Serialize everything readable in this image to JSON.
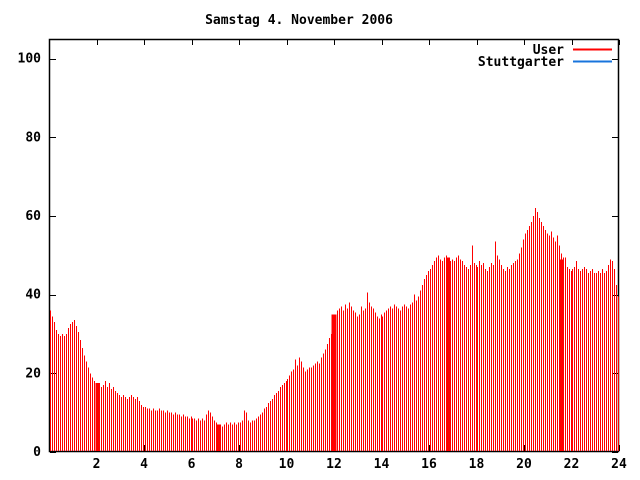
{
  "window": {
    "background": "#ffffff"
  },
  "chart_data": {
    "type": "bar",
    "title": "Samstag 4. November 2006",
    "xlabel": "",
    "ylabel": "",
    "x_unit": "hour-of-day",
    "sample_interval_minutes": 5,
    "xlim": [
      0,
      24
    ],
    "ylim": [
      0,
      105
    ],
    "x_ticks": [
      2,
      4,
      6,
      8,
      10,
      12,
      14,
      16,
      18,
      20,
      22,
      24
    ],
    "y_ticks": [
      0,
      20,
      40,
      60,
      80,
      100
    ],
    "grid": false,
    "legend_position": "top-right-inside",
    "axis_color": "#000000",
    "text_color": "#000000",
    "series": [
      {
        "name": "User",
        "color": "#ff0000",
        "style": "impulses",
        "values": [
          36,
          34.5,
          33,
          31,
          30,
          29.5,
          30,
          29.5,
          30,
          31.5,
          32.5,
          33,
          33.5,
          32,
          30.5,
          28.5,
          26.5,
          24.5,
          23,
          21.5,
          20,
          19,
          18,
          17.5,
          17.5,
          17,
          16.5,
          17,
          18,
          16.5,
          17.5,
          16,
          16.5,
          15.5,
          15,
          14.5,
          14,
          14.5,
          14,
          13.5,
          14,
          14.5,
          14,
          13.5,
          14,
          13,
          12,
          11.5,
          11.5,
          11,
          11,
          10.5,
          11,
          10.5,
          10.5,
          11,
          10.5,
          10.5,
          10,
          10.5,
          10,
          10,
          9.5,
          10,
          9.5,
          9.5,
          9,
          9.5,
          9,
          9,
          8.5,
          9,
          8.5,
          8.5,
          8,
          8.5,
          8,
          8.5,
          8,
          9.5,
          10.5,
          10,
          9,
          8,
          7.5,
          7,
          7,
          6.5,
          7,
          7.5,
          7,
          7.5,
          7,
          7.5,
          7,
          7.5,
          7.5,
          8,
          10.5,
          10,
          8,
          7.5,
          8,
          8,
          8.5,
          9,
          9.5,
          10,
          11,
          11.5,
          12.5,
          13,
          13.5,
          14.5,
          15,
          15.5,
          16.5,
          17,
          17.5,
          18,
          18.5,
          19.5,
          20.5,
          21,
          23.5,
          22,
          24,
          23,
          21.5,
          20.5,
          21,
          21.5,
          21.5,
          22,
          22.5,
          23,
          22.5,
          24,
          25,
          26,
          27.5,
          29,
          30,
          32,
          34,
          36,
          36.5,
          37,
          36,
          37.5,
          36.5,
          38,
          37,
          36,
          35.5,
          34.5,
          35,
          37,
          36,
          36.5,
          40.5,
          38,
          37,
          36.5,
          35.5,
          34.5,
          34,
          35,
          34.5,
          35.5,
          36,
          36.5,
          37,
          36.5,
          37.5,
          37,
          36.5,
          36,
          37,
          37.5,
          37,
          36.5,
          37.5,
          38,
          40,
          38.5,
          39.5,
          41,
          42.5,
          44,
          45,
          46,
          46.5,
          47.5,
          48.5,
          49.5,
          50,
          49,
          48.5,
          49.5,
          50,
          49.5,
          48.5,
          49,
          48.5,
          49.5,
          50,
          49,
          48.5,
          47.5,
          47,
          46.5,
          47.5,
          52.5,
          48,
          47.5,
          47,
          48.5,
          47.5,
          48,
          46.5,
          46,
          47,
          48,
          47.5,
          53.5,
          50,
          49,
          47.5,
          46.5,
          46,
          47,
          46.5,
          47.5,
          48,
          48.5,
          49,
          50.5,
          52,
          54,
          55.5,
          56.5,
          57.5,
          58.5,
          60,
          62,
          61,
          59.5,
          58.5,
          57.5,
          56.5,
          55.5,
          55,
          56,
          54.5,
          53.5,
          55,
          52.5,
          50.5,
          49.5,
          49.5,
          47,
          46.5,
          46,
          46.5,
          47,
          48.5,
          46.5,
          46,
          46.5,
          47,
          46.5,
          45.5,
          46,
          46.5,
          45.5,
          45.5,
          46,
          45.5,
          46.5,
          45.5,
          46,
          47.5,
          49,
          48.5,
          46.5,
          42.5,
          39.5
        ],
        "solid_patches": [
          {
            "hour": 2.05,
            "value": 17.5,
            "width_hours": 0.18
          },
          {
            "hour": 7.15,
            "value": 7,
            "width_hours": 0.18
          },
          {
            "hour": 12.0,
            "value": 35,
            "width_hours": 0.2
          },
          {
            "hour": 16.8,
            "value": 49.5,
            "width_hours": 0.18
          },
          {
            "hour": 21.6,
            "value": 49,
            "width_hours": 0.18
          }
        ]
      },
      {
        "name": "Stuttgarter",
        "color": "#1874dc",
        "style": "lines",
        "values": []
      }
    ]
  },
  "legend": {
    "items": [
      {
        "label": "User",
        "color": "#ff0000"
      },
      {
        "label": "Stuttgarter",
        "color": "#1874dc"
      }
    ]
  }
}
